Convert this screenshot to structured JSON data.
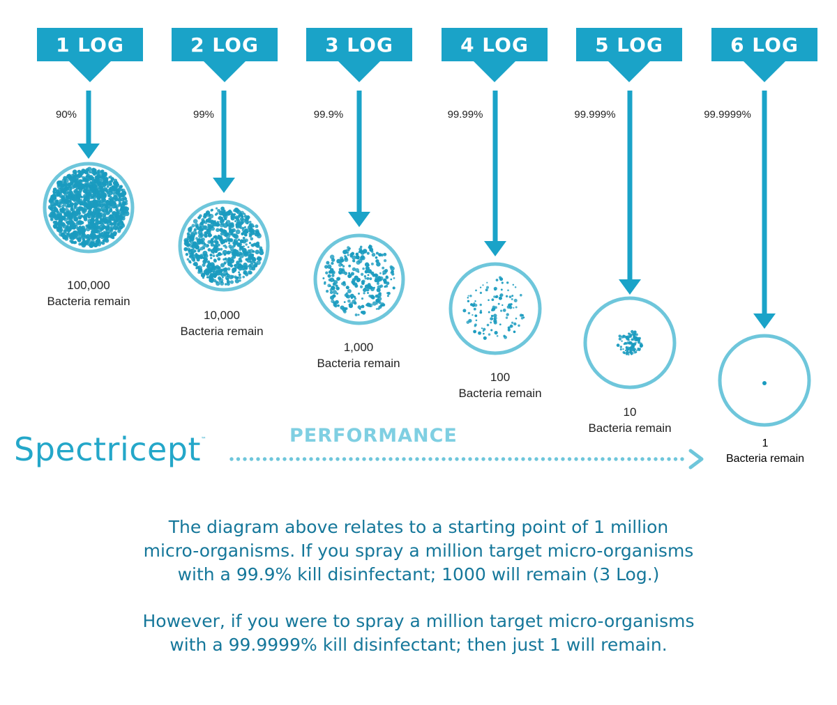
{
  "brand": {
    "name": "Spectricept",
    "trademark": "™"
  },
  "performance_label": "PERFORMANCE",
  "stages": [
    {
      "log_label": "1 LOG",
      "kill_percent": "90%",
      "count": "100,000",
      "remain_label": "Bacteria remain",
      "dot_count": 1100,
      "dot_spread": 0.98
    },
    {
      "log_label": "2 LOG",
      "kill_percent": "99%",
      "count": "10,000",
      "remain_label": "Bacteria remain",
      "dot_count": 600,
      "dot_spread": 0.97
    },
    {
      "log_label": "3 LOG",
      "kill_percent": "99.9%",
      "count": "1,000",
      "remain_label": "Bacteria remain",
      "dot_count": 260,
      "dot_spread": 0.9
    },
    {
      "log_label": "4 LOG",
      "kill_percent": "99.99%",
      "count": "100",
      "remain_label": "Bacteria remain",
      "dot_count": 110,
      "dot_spread": 0.8
    },
    {
      "log_label": "5 LOG",
      "kill_percent": "99.999%",
      "count": "10",
      "remain_label": "Bacteria remain",
      "dot_count": 90,
      "dot_spread": 0.3
    },
    {
      "log_label": "6 LOG",
      "kill_percent": "99.9999%",
      "count": "1",
      "remain_label": "Bacteria remain",
      "dot_count": 1,
      "dot_spread": 0
    }
  ],
  "paragraphs": {
    "p1": [
      "The diagram above relates to a starting point of 1 million",
      "micro-organisms. If you spray a million target micro-organisms",
      "with a 99.9% kill disinfectant; 1000 will remain (3 Log.)"
    ],
    "p2": [
      "However, if you were to spray a million target micro-organisms",
      "with a 99.9999% kill disinfectant; then just 1 will remain."
    ]
  },
  "colors": {
    "banner": "#1aa3c8",
    "arrow": "#1aa3c8",
    "circle_ring": "#6ec6db",
    "bacteria": "#1a9bbf",
    "brand": "#24a7c9",
    "performance": "#7fcfe2",
    "dotted_line": "#6ec6db",
    "paragraph": "#15779a"
  }
}
